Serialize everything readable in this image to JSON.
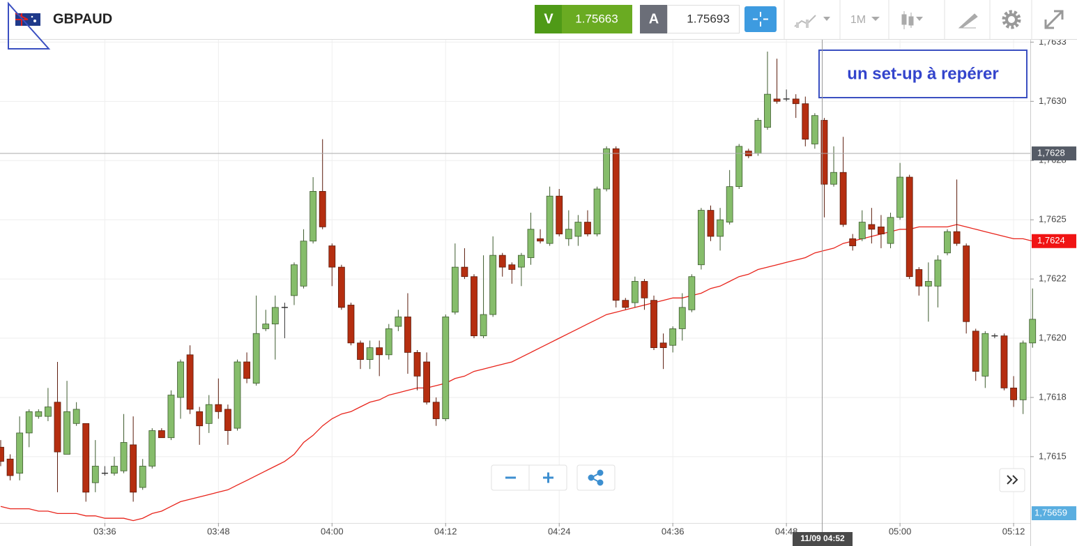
{
  "header": {
    "symbol": "GBPAUD",
    "sell": {
      "label": "V",
      "price": 1.75663
    },
    "buy": {
      "label": "A",
      "price": 1.75693
    },
    "timeframe": "1M"
  },
  "chart_data": {
    "type": "candlestick",
    "x": [
      "03:25",
      "03:26",
      "03:27",
      "03:28",
      "03:29",
      "03:30",
      "03:31",
      "03:32",
      "03:33",
      "03:34",
      "03:35",
      "03:36",
      "03:37",
      "03:38",
      "03:39",
      "03:40",
      "03:41",
      "03:42",
      "03:43",
      "03:44",
      "03:45",
      "03:46",
      "03:47",
      "03:48",
      "03:49",
      "03:50",
      "03:51",
      "03:52",
      "03:53",
      "03:54",
      "03:55",
      "03:56",
      "03:57",
      "03:58",
      "03:59",
      "04:00",
      "04:01",
      "04:02",
      "04:03",
      "04:04",
      "04:05",
      "04:06",
      "04:07",
      "04:08",
      "04:09",
      "04:10",
      "04:11",
      "04:12",
      "04:13",
      "04:14",
      "04:15",
      "04:16",
      "04:17",
      "04:18",
      "04:19",
      "04:20",
      "04:21",
      "04:22",
      "04:23",
      "04:24",
      "04:25",
      "04:26",
      "04:27",
      "04:28",
      "04:29",
      "04:30",
      "04:31",
      "04:32",
      "04:33",
      "04:34",
      "04:35",
      "04:36",
      "04:37",
      "04:38",
      "04:39",
      "04:40",
      "04:41",
      "04:42",
      "04:43",
      "04:44",
      "04:45",
      "04:46",
      "04:47",
      "04:48",
      "04:49",
      "04:50",
      "04:51",
      "04:52",
      "04:53",
      "04:54",
      "04:55",
      "04:56",
      "04:57",
      "04:58",
      "04:59",
      "05:00",
      "05:01",
      "05:02",
      "05:03",
      "05:04",
      "05:05",
      "05:06",
      "05:07",
      "05:08",
      "05:09",
      "05:10",
      "05:11",
      "05:12",
      "05:13",
      "05:14"
    ],
    "open": [
      1.76154,
      1.76149,
      1.76143,
      1.7616,
      1.76167,
      1.76167,
      1.76173,
      1.76151,
      1.76164,
      1.76164,
      1.76139,
      1.76143,
      1.76143,
      1.76144,
      1.76155,
      1.76137,
      1.76146,
      1.76161,
      1.76158,
      1.76175,
      1.76193,
      1.76169,
      1.76164,
      1.76172,
      1.7617,
      1.76162,
      1.7619,
      1.76181,
      1.76204,
      1.76206,
      1.76213,
      1.76218,
      1.76222,
      1.76241,
      1.76262,
      1.76239,
      1.7623,
      1.76214,
      1.76198,
      1.76191,
      1.76196,
      1.76193,
      1.76205,
      1.76209,
      1.76194,
      1.7619,
      1.76173,
      1.76166,
      1.76211,
      1.7623,
      1.76226,
      1.76201,
      1.7621,
      1.76235,
      1.76231,
      1.7623,
      1.76234,
      1.76242,
      1.7624,
      1.7626,
      1.76242,
      1.76243,
      1.76249,
      1.76244,
      1.76263,
      1.7628,
      1.76216,
      1.76215,
      1.76224,
      1.76216,
      1.76198,
      1.76197,
      1.76204,
      1.76212,
      1.76231,
      1.76254,
      1.76243,
      1.76249,
      1.76264,
      1.76279,
      1.76278,
      1.76289,
      1.76301,
      1.76301,
      1.76301,
      1.76299,
      1.76282,
      1.76292,
      1.76265,
      1.7627,
      1.76242,
      1.76242,
      1.76248,
      1.76247,
      1.7624,
      1.76251,
      1.76268,
      1.76229,
      1.76222,
      1.76222,
      1.76236,
      1.76245,
      1.76239,
      1.76203,
      1.76184,
      1.76201,
      1.76201,
      1.76179,
      1.76174,
      1.76198
    ],
    "high": [
      1.76157,
      1.76151,
      1.76167,
      1.7617,
      1.7617,
      1.76179,
      1.7619,
      1.76182,
      1.76173,
      1.76164,
      1.76157,
      1.76146,
      1.7615,
      1.76168,
      1.76167,
      1.76149,
      1.76162,
      1.76162,
      1.76178,
      1.76191,
      1.76197,
      1.76171,
      1.76176,
      1.76183,
      1.76172,
      1.76191,
      1.76194,
      1.76218,
      1.76212,
      1.76218,
      1.76215,
      1.76232,
      1.76246,
      1.76268,
      1.76284,
      1.7624,
      1.76231,
      1.76215,
      1.76199,
      1.76199,
      1.76199,
      1.76206,
      1.76212,
      1.76219,
      1.76195,
      1.76194,
      1.76175,
      1.7621,
      1.7624,
      1.76238,
      1.76227,
      1.76235,
      1.76243,
      1.76236,
      1.76232,
      1.76236,
      1.76253,
      1.76246,
      1.76264,
      1.76263,
      1.76254,
      1.76252,
      1.76254,
      1.76264,
      1.76281,
      1.76281,
      1.76217,
      1.76226,
      1.76225,
      1.76218,
      1.76202,
      1.76205,
      1.76219,
      1.76227,
      1.76255,
      1.76256,
      1.76255,
      1.76271,
      1.76282,
      1.7628,
      1.76293,
      1.76321,
      1.76318,
      1.76305,
      1.76303,
      1.76302,
      1.76295,
      1.76293,
      1.76281,
      1.76285,
      1.76244,
      1.76254,
      1.76255,
      1.76252,
      1.76253,
      1.76274,
      1.76269,
      1.7623,
      1.76232,
      1.76235,
      1.76246,
      1.76267,
      1.7624,
      1.76204,
      1.76203,
      1.76202,
      1.76202,
      1.76184,
      1.76199,
      1.76221
    ],
    "low": [
      1.76146,
      1.7614,
      1.7614,
      1.76154,
      1.76166,
      1.76165,
      1.76135,
      1.76151,
      1.76163,
      1.76131,
      1.76135,
      1.76142,
      1.76142,
      1.76143,
      1.76131,
      1.76136,
      1.76145,
      1.76158,
      1.76157,
      1.76166,
      1.76168,
      1.76155,
      1.7616,
      1.76166,
      1.76155,
      1.76161,
      1.76181,
      1.7618,
      1.76203,
      1.76191,
      1.762,
      1.76214,
      1.76221,
      1.7624,
      1.76246,
      1.76222,
      1.76212,
      1.76197,
      1.76187,
      1.76187,
      1.76184,
      1.76191,
      1.76203,
      1.76185,
      1.76178,
      1.76172,
      1.76163,
      1.76165,
      1.7621,
      1.76225,
      1.762,
      1.762,
      1.76209,
      1.76226,
      1.76223,
      1.76222,
      1.76231,
      1.7624,
      1.76239,
      1.76243,
      1.76239,
      1.76239,
      1.76243,
      1.76243,
      1.76262,
      1.76213,
      1.76212,
      1.76213,
      1.76212,
      1.76195,
      1.76187,
      1.76194,
      1.76199,
      1.76211,
      1.76229,
      1.76241,
      1.76237,
      1.76248,
      1.76263,
      1.76276,
      1.76277,
      1.76288,
      1.76299,
      1.763,
      1.76293,
      1.76281,
      1.7628,
      1.76251,
      1.76264,
      1.76247,
      1.76237,
      1.76241,
      1.7624,
      1.76238,
      1.76238,
      1.7625,
      1.76225,
      1.76218,
      1.76207,
      1.76213,
      1.76235,
      1.76239,
      1.76202,
      1.76182,
      1.76179,
      1.762,
      1.76178,
      1.76171,
      1.76168,
      1.76196
    ],
    "close": [
      1.76148,
      1.76142,
      1.7616,
      1.76169,
      1.76169,
      1.76171,
      1.76152,
      1.76169,
      1.7617,
      1.76135,
      1.76146,
      1.76143,
      1.76146,
      1.76156,
      1.76135,
      1.76146,
      1.76161,
      1.76158,
      1.76176,
      1.7619,
      1.7617,
      1.76163,
      1.76172,
      1.76169,
      1.76161,
      1.7619,
      1.76183,
      1.76202,
      1.76206,
      1.76213,
      1.76213,
      1.76231,
      1.76241,
      1.76262,
      1.76247,
      1.7623,
      1.76213,
      1.76198,
      1.76191,
      1.76196,
      1.76193,
      1.76204,
      1.76209,
      1.76194,
      1.76184,
      1.76173,
      1.76166,
      1.76209,
      1.7623,
      1.76226,
      1.76201,
      1.7621,
      1.76235,
      1.7623,
      1.76229,
      1.76235,
      1.76246,
      1.76241,
      1.7626,
      1.76244,
      1.76246,
      1.76249,
      1.76244,
      1.76263,
      1.7628,
      1.76216,
      1.76213,
      1.76224,
      1.76217,
      1.76196,
      1.76196,
      1.76204,
      1.76213,
      1.76226,
      1.76254,
      1.76243,
      1.7625,
      1.76264,
      1.76281,
      1.76277,
      1.76292,
      1.76303,
      1.763,
      1.76301,
      1.76299,
      1.76284,
      1.76294,
      1.76265,
      1.7627,
      1.76248,
      1.76239,
      1.76249,
      1.76246,
      1.76244,
      1.76251,
      1.76268,
      1.76226,
      1.76222,
      1.76224,
      1.76233,
      1.76245,
      1.7624,
      1.76207,
      1.76186,
      1.76202,
      1.76201,
      1.76179,
      1.76174,
      1.76198,
      1.76208
    ],
    "up_color": "#86bd6b",
    "down_color": "#b52e10",
    "ma": {
      "color": "#e8231a",
      "values": [
        1.76129,
        1.76128,
        1.76128,
        1.76128,
        1.76127,
        1.76127,
        1.76126,
        1.76126,
        1.76126,
        1.76125,
        1.76125,
        1.76124,
        1.76124,
        1.76124,
        1.76123,
        1.76124,
        1.76126,
        1.76127,
        1.76129,
        1.76131,
        1.76132,
        1.76133,
        1.76134,
        1.76135,
        1.76136,
        1.76138,
        1.7614,
        1.76142,
        1.76144,
        1.76146,
        1.76148,
        1.76151,
        1.76156,
        1.76159,
        1.76163,
        1.76166,
        1.76168,
        1.76169,
        1.76171,
        1.76173,
        1.76174,
        1.76176,
        1.76177,
        1.76178,
        1.76179,
        1.76179,
        1.7618,
        1.76181,
        1.76183,
        1.76184,
        1.76186,
        1.76187,
        1.76188,
        1.76189,
        1.7619,
        1.76192,
        1.76194,
        1.76196,
        1.76198,
        1.762,
        1.76202,
        1.76204,
        1.76206,
        1.76208,
        1.7621,
        1.76211,
        1.76212,
        1.76213,
        1.76214,
        1.76215,
        1.76216,
        1.76217,
        1.76217,
        1.76218,
        1.76219,
        1.76221,
        1.76222,
        1.76224,
        1.76226,
        1.76227,
        1.76229,
        1.7623,
        1.76231,
        1.76232,
        1.76233,
        1.76234,
        1.76236,
        1.76237,
        1.76238,
        1.7624,
        1.76241,
        1.76242,
        1.76243,
        1.76244,
        1.76245,
        1.76246,
        1.76246,
        1.76247,
        1.76247,
        1.76247,
        1.76247,
        1.76248,
        1.76247,
        1.76246,
        1.76245,
        1.76244,
        1.76243,
        1.76242,
        1.76242,
        1.76241
      ],
      "last_label": "1,7624"
    },
    "ylim": [
      1.76122,
      1.76326
    ],
    "yticks": [
      {
        "value": 1.76325,
        "label": "1,7633"
      },
      {
        "value": 1.763,
        "label": "1,7630"
      },
      {
        "value": 1.76275,
        "label": "1,7628"
      },
      {
        "value": 1.7625,
        "label": "1,7625"
      },
      {
        "value": 1.76225,
        "label": "1,7622"
      },
      {
        "value": 1.762,
        "label": "1,7620"
      },
      {
        "value": 1.76175,
        "label": "1,7618"
      },
      {
        "value": 1.7615,
        "label": "1,7615"
      }
    ],
    "xticks": [
      "03:36",
      "03:48",
      "04:00",
      "04:12",
      "04:24",
      "04:36",
      "04:48",
      "05:00",
      "05:12"
    ],
    "grid": true,
    "crosshair_price": {
      "value": 1.76278,
      "label": "1,7628"
    },
    "crosshair_time": "11/09 04:52",
    "bottom_tag": "1,75659",
    "annotation": "un set-up à repérer"
  }
}
